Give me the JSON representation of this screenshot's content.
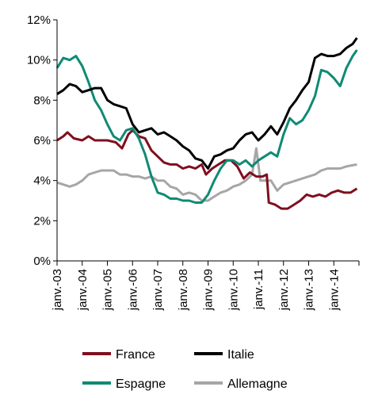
{
  "chart_data": {
    "type": "line",
    "title": "",
    "xlabel": "",
    "ylabel": "",
    "ylim": [
      0,
      12
    ],
    "y_ticks": [
      "0%",
      "2%",
      "4%",
      "6%",
      "8%",
      "10%",
      "12%"
    ],
    "x_ticks": [
      "janv.-03",
      "janv.-04",
      "janv.-05",
      "janv.-06",
      "janv.-07",
      "janv.-08",
      "janv.-09",
      "janv.-10",
      "janv.-11",
      "janv.-12",
      "janv.-13",
      "janv.-14"
    ],
    "x_range": [
      "2003-01",
      "2014-12"
    ],
    "grid": false,
    "legend_position": "bottom",
    "series": [
      {
        "name": "France",
        "color": "#7f0f1f",
        "points": [
          [
            "2003-01",
            6.0
          ],
          [
            "2003-04",
            6.2
          ],
          [
            "2003-06",
            6.4
          ],
          [
            "2003-09",
            6.1
          ],
          [
            "2004-01",
            6.0
          ],
          [
            "2004-04",
            6.2
          ],
          [
            "2004-07",
            6.0
          ],
          [
            "2004-10",
            6.0
          ],
          [
            "2005-01",
            6.0
          ],
          [
            "2005-05",
            5.9
          ],
          [
            "2005-08",
            5.6
          ],
          [
            "2005-11",
            6.3
          ],
          [
            "2006-01",
            6.5
          ],
          [
            "2006-04",
            6.2
          ],
          [
            "2006-07",
            6.1
          ],
          [
            "2006-10",
            5.5
          ],
          [
            "2007-01",
            5.2
          ],
          [
            "2007-04",
            4.9
          ],
          [
            "2007-07",
            4.8
          ],
          [
            "2007-10",
            4.8
          ],
          [
            "2008-01",
            4.6
          ],
          [
            "2008-04",
            4.7
          ],
          [
            "2008-07",
            4.6
          ],
          [
            "2008-10",
            4.8
          ],
          [
            "2008-12",
            4.3
          ],
          [
            "2009-03",
            4.6
          ],
          [
            "2009-06",
            4.8
          ],
          [
            "2009-09",
            5.0
          ],
          [
            "2009-12",
            5.0
          ],
          [
            "2010-03",
            4.7
          ],
          [
            "2010-06",
            4.1
          ],
          [
            "2010-09",
            4.4
          ],
          [
            "2010-12",
            4.2
          ],
          [
            "2011-03",
            4.2
          ],
          [
            "2011-05",
            4.3
          ],
          [
            "2011-06",
            2.9
          ],
          [
            "2011-09",
            2.8
          ],
          [
            "2011-12",
            2.6
          ],
          [
            "2012-03",
            2.6
          ],
          [
            "2012-06",
            2.8
          ],
          [
            "2012-09",
            3.0
          ],
          [
            "2012-12",
            3.3
          ],
          [
            "2013-03",
            3.2
          ],
          [
            "2013-06",
            3.3
          ],
          [
            "2013-09",
            3.2
          ],
          [
            "2013-12",
            3.4
          ],
          [
            "2014-03",
            3.5
          ],
          [
            "2014-06",
            3.4
          ],
          [
            "2014-09",
            3.4
          ],
          [
            "2014-12",
            3.6
          ]
        ]
      },
      {
        "name": "Italie",
        "color": "#000000",
        "points": [
          [
            "2003-01",
            8.3
          ],
          [
            "2003-04",
            8.5
          ],
          [
            "2003-07",
            8.8
          ],
          [
            "2003-10",
            8.7
          ],
          [
            "2004-01",
            8.4
          ],
          [
            "2004-04",
            8.5
          ],
          [
            "2004-07",
            8.6
          ],
          [
            "2004-10",
            8.6
          ],
          [
            "2005-01",
            8.0
          ],
          [
            "2005-04",
            7.8
          ],
          [
            "2005-07",
            7.7
          ],
          [
            "2005-10",
            7.6
          ],
          [
            "2006-01",
            6.8
          ],
          [
            "2006-04",
            6.4
          ],
          [
            "2006-07",
            6.5
          ],
          [
            "2006-10",
            6.6
          ],
          [
            "2007-01",
            6.3
          ],
          [
            "2007-04",
            6.4
          ],
          [
            "2007-07",
            6.2
          ],
          [
            "2007-10",
            6.0
          ],
          [
            "2008-01",
            5.7
          ],
          [
            "2008-04",
            5.5
          ],
          [
            "2008-07",
            5.1
          ],
          [
            "2008-10",
            5.0
          ],
          [
            "2009-01",
            4.6
          ],
          [
            "2009-04",
            5.2
          ],
          [
            "2009-07",
            5.3
          ],
          [
            "2009-10",
            5.5
          ],
          [
            "2010-01",
            5.6
          ],
          [
            "2010-04",
            6.0
          ],
          [
            "2010-07",
            6.3
          ],
          [
            "2010-10",
            6.4
          ],
          [
            "2011-01",
            6.0
          ],
          [
            "2011-04",
            6.3
          ],
          [
            "2011-07",
            6.7
          ],
          [
            "2011-10",
            6.3
          ],
          [
            "2012-01",
            6.9
          ],
          [
            "2012-04",
            7.6
          ],
          [
            "2012-07",
            8.0
          ],
          [
            "2012-10",
            8.5
          ],
          [
            "2013-01",
            8.9
          ],
          [
            "2013-04",
            10.1
          ],
          [
            "2013-07",
            10.3
          ],
          [
            "2013-10",
            10.2
          ],
          [
            "2014-01",
            10.2
          ],
          [
            "2014-04",
            10.3
          ],
          [
            "2014-07",
            10.6
          ],
          [
            "2014-10",
            10.8
          ],
          [
            "2014-12",
            11.1
          ]
        ]
      },
      {
        "name": "Espagne",
        "color": "#0f8a74",
        "points": [
          [
            "2003-01",
            9.6
          ],
          [
            "2003-04",
            10.1
          ],
          [
            "2003-07",
            10.0
          ],
          [
            "2003-10",
            10.2
          ],
          [
            "2004-01",
            9.7
          ],
          [
            "2004-04",
            8.9
          ],
          [
            "2004-07",
            8.0
          ],
          [
            "2004-10",
            7.5
          ],
          [
            "2005-01",
            6.8
          ],
          [
            "2005-04",
            6.2
          ],
          [
            "2005-07",
            6.0
          ],
          [
            "2005-10",
            6.5
          ],
          [
            "2006-01",
            6.6
          ],
          [
            "2006-04",
            6.1
          ],
          [
            "2006-07",
            5.3
          ],
          [
            "2006-10",
            4.2
          ],
          [
            "2007-01",
            3.4
          ],
          [
            "2007-04",
            3.3
          ],
          [
            "2007-07",
            3.1
          ],
          [
            "2007-10",
            3.1
          ],
          [
            "2008-01",
            3.0
          ],
          [
            "2008-04",
            3.0
          ],
          [
            "2008-07",
            2.9
          ],
          [
            "2008-10",
            2.9
          ],
          [
            "2009-01",
            3.3
          ],
          [
            "2009-04",
            4.0
          ],
          [
            "2009-07",
            4.6
          ],
          [
            "2009-10",
            5.0
          ],
          [
            "2010-01",
            5.0
          ],
          [
            "2010-04",
            4.8
          ],
          [
            "2010-07",
            5.0
          ],
          [
            "2010-10",
            4.7
          ],
          [
            "2011-01",
            5.0
          ],
          [
            "2011-04",
            5.2
          ],
          [
            "2011-07",
            5.4
          ],
          [
            "2011-10",
            5.2
          ],
          [
            "2012-01",
            6.3
          ],
          [
            "2012-04",
            7.1
          ],
          [
            "2012-07",
            6.8
          ],
          [
            "2012-10",
            7.0
          ],
          [
            "2013-01",
            7.5
          ],
          [
            "2013-04",
            8.2
          ],
          [
            "2013-07",
            9.5
          ],
          [
            "2013-10",
            9.4
          ],
          [
            "2014-01",
            9.1
          ],
          [
            "2014-04",
            8.7
          ],
          [
            "2014-07",
            9.6
          ],
          [
            "2014-10",
            10.2
          ],
          [
            "2014-12",
            10.5
          ]
        ]
      },
      {
        "name": "Allemagne",
        "color": "#a6a6a6",
        "points": [
          [
            "2003-01",
            3.9
          ],
          [
            "2003-04",
            3.8
          ],
          [
            "2003-07",
            3.7
          ],
          [
            "2003-10",
            3.8
          ],
          [
            "2004-01",
            4.0
          ],
          [
            "2004-04",
            4.3
          ],
          [
            "2004-07",
            4.4
          ],
          [
            "2004-10",
            4.5
          ],
          [
            "2005-01",
            4.5
          ],
          [
            "2005-04",
            4.5
          ],
          [
            "2005-07",
            4.3
          ],
          [
            "2005-10",
            4.3
          ],
          [
            "2006-01",
            4.2
          ],
          [
            "2006-04",
            4.2
          ],
          [
            "2006-07",
            4.1
          ],
          [
            "2006-10",
            4.2
          ],
          [
            "2007-01",
            4.0
          ],
          [
            "2007-04",
            4.0
          ],
          [
            "2007-07",
            3.7
          ],
          [
            "2007-10",
            3.6
          ],
          [
            "2008-01",
            3.3
          ],
          [
            "2008-04",
            3.4
          ],
          [
            "2008-07",
            3.3
          ],
          [
            "2008-10",
            3.0
          ],
          [
            "2009-01",
            3.0
          ],
          [
            "2009-04",
            3.2
          ],
          [
            "2009-07",
            3.4
          ],
          [
            "2009-10",
            3.5
          ],
          [
            "2010-01",
            3.7
          ],
          [
            "2010-04",
            3.8
          ],
          [
            "2010-07",
            4.0
          ],
          [
            "2010-10",
            4.3
          ],
          [
            "2010-12",
            5.6
          ],
          [
            "2011-02",
            4.0
          ],
          [
            "2011-04",
            4.0
          ],
          [
            "2011-07",
            4.0
          ],
          [
            "2011-10",
            3.5
          ],
          [
            "2012-01",
            3.8
          ],
          [
            "2012-04",
            3.9
          ],
          [
            "2012-07",
            4.0
          ],
          [
            "2012-10",
            4.1
          ],
          [
            "2013-01",
            4.2
          ],
          [
            "2013-04",
            4.3
          ],
          [
            "2013-07",
            4.5
          ],
          [
            "2013-10",
            4.6
          ],
          [
            "2014-01",
            4.6
          ],
          [
            "2014-04",
            4.6
          ],
          [
            "2014-07",
            4.7
          ],
          [
            "2014-12",
            4.8
          ]
        ]
      }
    ]
  }
}
